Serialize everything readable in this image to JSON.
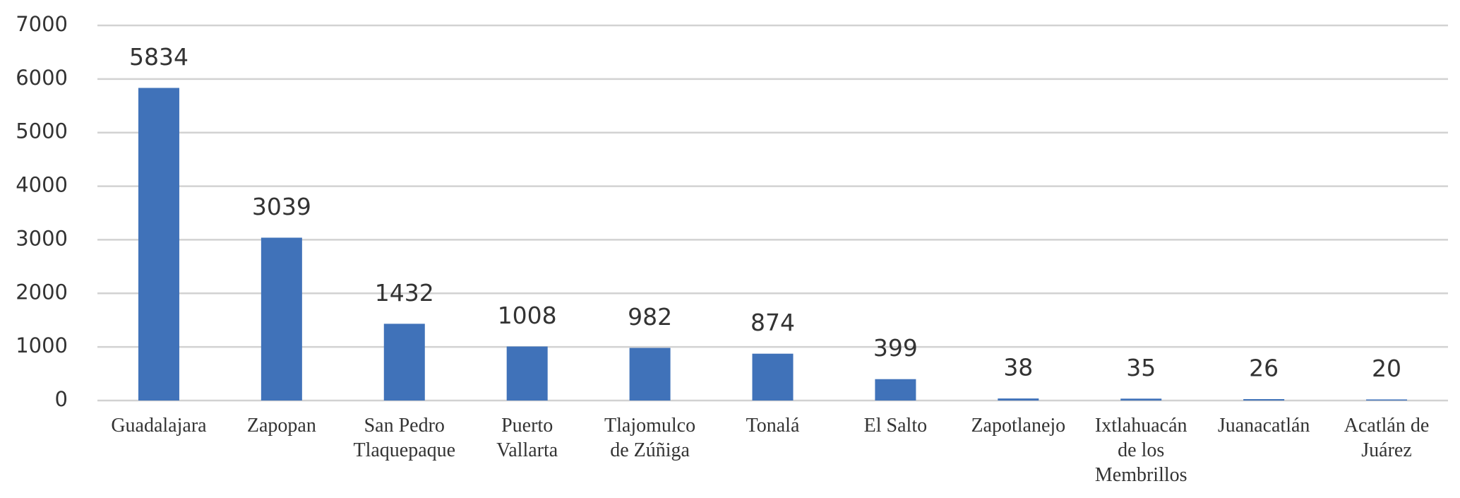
{
  "chart_data": {
    "type": "bar",
    "categories": [
      "Guadalajara",
      "Zapopan",
      "San Pedro Tlaquepaque",
      "Puerto Vallarta",
      "Tlajomulco de Zúñiga",
      "Tonalá",
      "El Salto",
      "Zapotlanejo",
      "Ixtlahuacán de los Membrillos",
      "Juanacatlán",
      "Acatlán de Juárez"
    ],
    "values": [
      5834,
      3039,
      1432,
      1008,
      982,
      874,
      399,
      38,
      35,
      26,
      20
    ],
    "color": "#4072b9",
    "ylim": [
      0,
      7000
    ],
    "yticks": [
      0,
      1000,
      2000,
      3000,
      4000,
      5000,
      6000,
      7000
    ],
    "grid": true
  }
}
